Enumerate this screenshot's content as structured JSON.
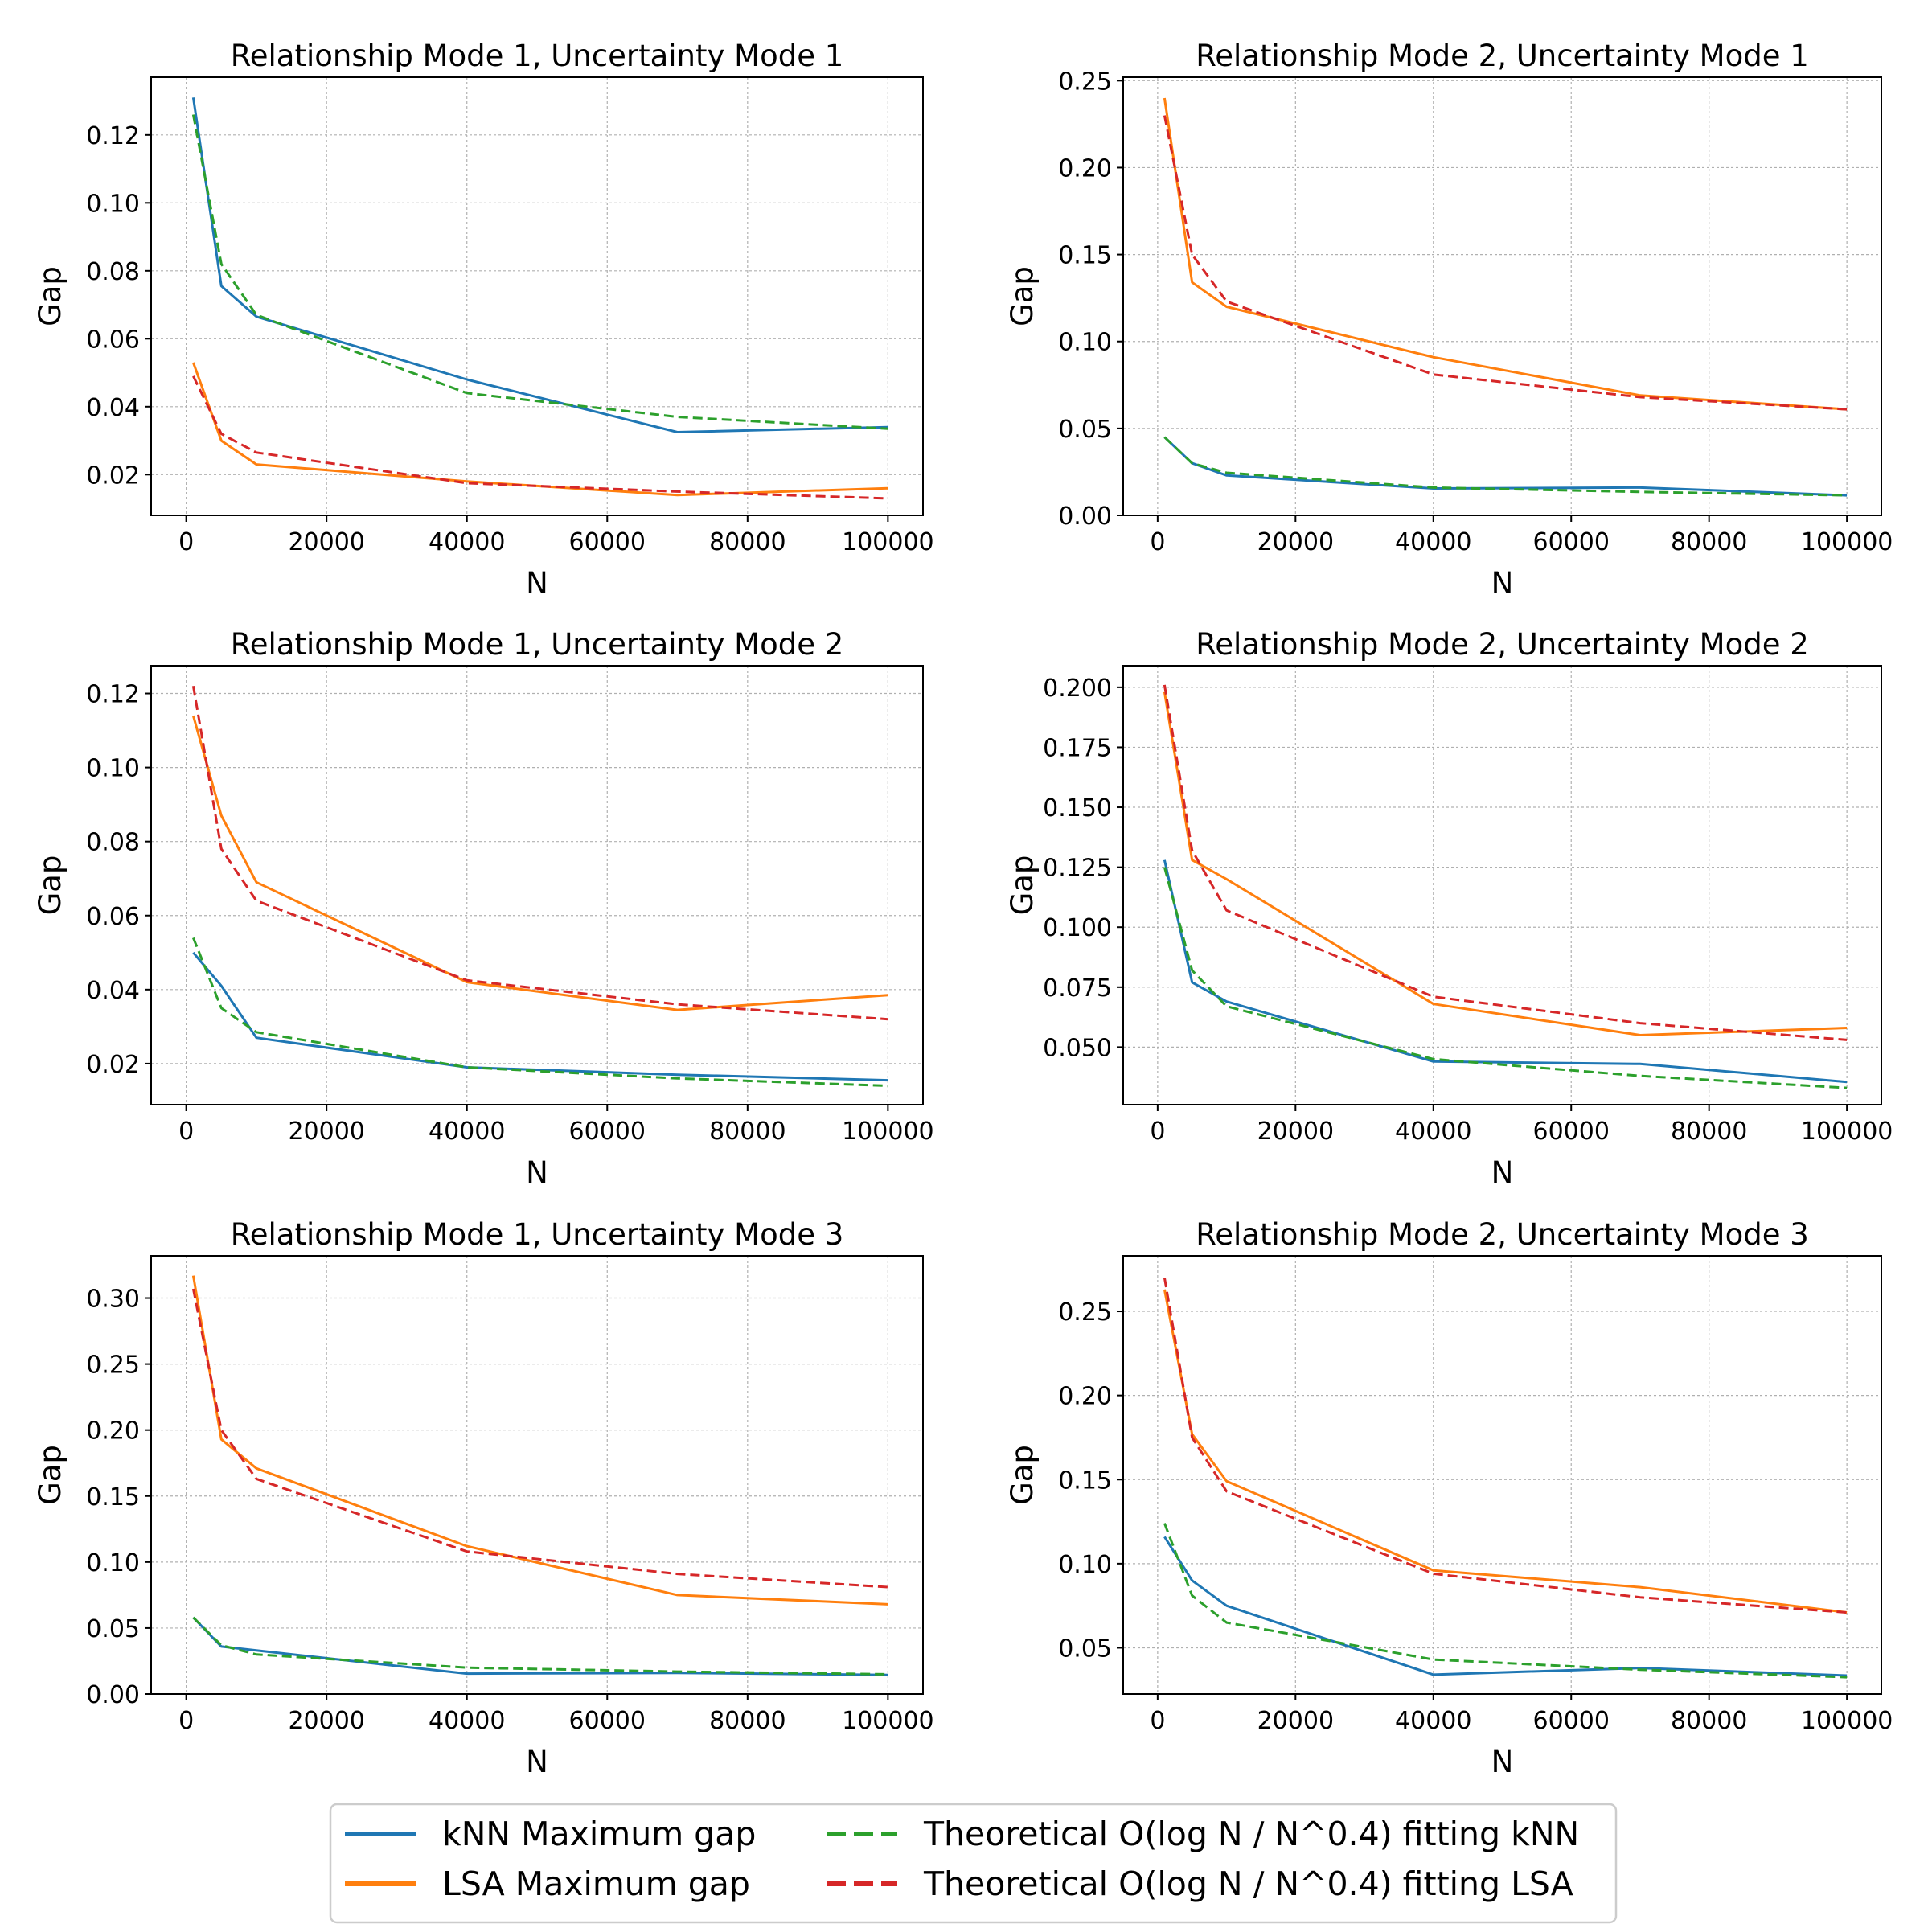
{
  "colors": {
    "knn": "#1f77b4",
    "lsa": "#ff7f0e",
    "fit_knn": "#2ca02c",
    "fit_lsa": "#d62728",
    "grid": "#b0b0b0"
  },
  "legend": {
    "knn_max": "kNN Maximum gap",
    "lsa_max": "LSA Maximum gap",
    "fit_knn": "Theoretical O(log N / N^0.4) fitting kNN",
    "fit_lsa": "Theoretical O(log N / N^0.4) fitting LSA"
  },
  "chart_data": [
    {
      "type": "line",
      "title": "Relationship Mode 1, Uncertainty Mode 1",
      "xlabel": "N",
      "ylabel": "Gap",
      "x": [
        1000,
        5000,
        10000,
        40000,
        70000,
        100000
      ],
      "xlim": [
        -5000,
        105000
      ],
      "ylim": [
        0.008,
        0.137
      ],
      "xticks": [
        0,
        20000,
        40000,
        60000,
        80000,
        100000
      ],
      "xtick_labels": [
        "0",
        "20000",
        "40000",
        "60000",
        "80000",
        "100000"
      ],
      "yticks": [
        0.02,
        0.04,
        0.06,
        0.08,
        0.1,
        0.12
      ],
      "ytick_labels": [
        "0.02",
        "0.04",
        "0.06",
        "0.08",
        "0.10",
        "0.12"
      ],
      "grid": true,
      "series": [
        {
          "name": "kNN Maximum gap",
          "color_key": "knn",
          "dashed": false,
          "values": [
            0.131,
            0.0755,
            0.0665,
            0.048,
            0.0325,
            0.034
          ]
        },
        {
          "name": "LSA Maximum gap",
          "color_key": "lsa",
          "dashed": false,
          "values": [
            0.053,
            0.03,
            0.023,
            0.018,
            0.014,
            0.016
          ]
        },
        {
          "name": "Theoretical O(log N / N^0.4) fitting kNN",
          "color_key": "fit_knn",
          "dashed": true,
          "values": [
            0.126,
            0.082,
            0.067,
            0.044,
            0.037,
            0.0335
          ]
        },
        {
          "name": "Theoretical O(log N / N^0.4) fitting LSA",
          "color_key": "fit_lsa",
          "dashed": true,
          "values": [
            0.049,
            0.032,
            0.0265,
            0.0175,
            0.015,
            0.013
          ]
        }
      ]
    },
    {
      "type": "line",
      "title": "Relationship Mode 2, Uncertainty Mode 1",
      "xlabel": "N",
      "ylabel": "Gap",
      "x": [
        1000,
        5000,
        10000,
        40000,
        70000,
        100000
      ],
      "xlim": [
        -5000,
        105000
      ],
      "ylim": [
        0.0,
        0.252
      ],
      "xticks": [
        0,
        20000,
        40000,
        60000,
        80000,
        100000
      ],
      "xtick_labels": [
        "0",
        "20000",
        "40000",
        "60000",
        "80000",
        "100000"
      ],
      "yticks": [
        0.0,
        0.05,
        0.1,
        0.15,
        0.2,
        0.25
      ],
      "ytick_labels": [
        "0.00",
        "0.05",
        "0.10",
        "0.15",
        "0.20",
        "0.25"
      ],
      "grid": true,
      "series": [
        {
          "name": "kNN Maximum gap",
          "color_key": "knn",
          "dashed": false,
          "values": [
            0.045,
            0.03,
            0.023,
            0.0155,
            0.016,
            0.0115
          ]
        },
        {
          "name": "LSA Maximum gap",
          "color_key": "lsa",
          "dashed": false,
          "values": [
            0.24,
            0.134,
            0.12,
            0.091,
            0.069,
            0.061
          ]
        },
        {
          "name": "Theoretical O(log N / N^0.4) fitting kNN",
          "color_key": "fit_knn",
          "dashed": true,
          "values": [
            0.045,
            0.03,
            0.0245,
            0.016,
            0.0135,
            0.0115
          ]
        },
        {
          "name": "Theoretical O(log N / N^0.4) fitting LSA",
          "color_key": "fit_lsa",
          "dashed": true,
          "values": [
            0.23,
            0.15,
            0.123,
            0.081,
            0.068,
            0.061
          ]
        }
      ]
    },
    {
      "type": "line",
      "title": "Relationship Mode 1, Uncertainty Mode 2",
      "xlabel": "N",
      "ylabel": "Gap",
      "x": [
        1000,
        5000,
        10000,
        40000,
        70000,
        100000
      ],
      "xlim": [
        -5000,
        105000
      ],
      "ylim": [
        0.0089,
        0.1275
      ],
      "xticks": [
        0,
        20000,
        40000,
        60000,
        80000,
        100000
      ],
      "xtick_labels": [
        "0",
        "20000",
        "40000",
        "60000",
        "80000",
        "100000"
      ],
      "yticks": [
        0.02,
        0.04,
        0.06,
        0.08,
        0.1,
        0.12
      ],
      "ytick_labels": [
        "0.02",
        "0.04",
        "0.06",
        "0.08",
        "0.10",
        "0.12"
      ],
      "grid": true,
      "series": [
        {
          "name": "kNN Maximum gap",
          "color_key": "knn",
          "dashed": false,
          "values": [
            0.05,
            0.041,
            0.027,
            0.019,
            0.017,
            0.0155
          ]
        },
        {
          "name": "LSA Maximum gap",
          "color_key": "lsa",
          "dashed": false,
          "values": [
            0.114,
            0.087,
            0.069,
            0.042,
            0.0345,
            0.0385
          ]
        },
        {
          "name": "Theoretical O(log N / N^0.4) fitting kNN",
          "color_key": "fit_knn",
          "dashed": true,
          "values": [
            0.054,
            0.035,
            0.0285,
            0.019,
            0.016,
            0.014
          ]
        },
        {
          "name": "Theoretical O(log N / N^0.4) fitting LSA",
          "color_key": "fit_lsa",
          "dashed": true,
          "values": [
            0.122,
            0.078,
            0.064,
            0.0425,
            0.036,
            0.032
          ]
        }
      ]
    },
    {
      "type": "line",
      "title": "Relationship Mode 2, Uncertainty Mode 2",
      "xlabel": "N",
      "ylabel": "Gap",
      "x": [
        1000,
        5000,
        10000,
        40000,
        70000,
        100000
      ],
      "xlim": [
        -5000,
        105000
      ],
      "ylim": [
        0.026,
        0.209
      ],
      "xticks": [
        0,
        20000,
        40000,
        60000,
        80000,
        100000
      ],
      "xtick_labels": [
        "0",
        "20000",
        "40000",
        "60000",
        "80000",
        "100000"
      ],
      "yticks": [
        0.05,
        0.075,
        0.1,
        0.125,
        0.15,
        0.175,
        0.2
      ],
      "ytick_labels": [
        "0.050",
        "0.075",
        "0.100",
        "0.125",
        "0.150",
        "0.175",
        "0.200"
      ],
      "grid": true,
      "series": [
        {
          "name": "kNN Maximum gap",
          "color_key": "knn",
          "dashed": false,
          "values": [
            0.128,
            0.077,
            0.069,
            0.044,
            0.043,
            0.0355
          ]
        },
        {
          "name": "LSA Maximum gap",
          "color_key": "lsa",
          "dashed": false,
          "values": [
            0.198,
            0.128,
            0.12,
            0.068,
            0.055,
            0.058
          ]
        },
        {
          "name": "Theoretical O(log N / N^0.4) fitting kNN",
          "color_key": "fit_knn",
          "dashed": true,
          "values": [
            0.125,
            0.082,
            0.067,
            0.045,
            0.038,
            0.033
          ]
        },
        {
          "name": "Theoretical O(log N / N^0.4) fitting LSA",
          "color_key": "fit_lsa",
          "dashed": true,
          "values": [
            0.201,
            0.132,
            0.107,
            0.071,
            0.06,
            0.053
          ]
        }
      ]
    },
    {
      "type": "line",
      "title": "Relationship Mode 1, Uncertainty Mode 3",
      "xlabel": "N",
      "ylabel": "Gap",
      "x": [
        1000,
        5000,
        10000,
        40000,
        70000,
        100000
      ],
      "xlim": [
        -5000,
        105000
      ],
      "ylim": [
        0.0,
        0.332
      ],
      "xticks": [
        0,
        20000,
        40000,
        60000,
        80000,
        100000
      ],
      "xtick_labels": [
        "0",
        "20000",
        "40000",
        "60000",
        "80000",
        "100000"
      ],
      "yticks": [
        0.0,
        0.05,
        0.1,
        0.15,
        0.2,
        0.25,
        0.3
      ],
      "ytick_labels": [
        "0.00",
        "0.05",
        "0.10",
        "0.15",
        "0.20",
        "0.25",
        "0.30"
      ],
      "grid": true,
      "series": [
        {
          "name": "kNN Maximum gap",
          "color_key": "knn",
          "dashed": false,
          "values": [
            0.058,
            0.036,
            0.033,
            0.0155,
            0.016,
            0.0145
          ]
        },
        {
          "name": "LSA Maximum gap",
          "color_key": "lsa",
          "dashed": false,
          "values": [
            0.317,
            0.193,
            0.171,
            0.112,
            0.075,
            0.068
          ]
        },
        {
          "name": "Theoretical O(log N / N^0.4) fitting kNN",
          "color_key": "fit_knn",
          "dashed": true,
          "values": [
            0.058,
            0.037,
            0.03,
            0.02,
            0.017,
            0.015
          ]
        },
        {
          "name": "Theoretical O(log N / N^0.4) fitting LSA",
          "color_key": "fit_lsa",
          "dashed": true,
          "values": [
            0.307,
            0.2,
            0.163,
            0.108,
            0.091,
            0.081
          ]
        }
      ]
    },
    {
      "type": "line",
      "title": "Relationship Mode 2, Uncertainty Mode 3",
      "xlabel": "N",
      "ylabel": "Gap",
      "x": [
        1000,
        5000,
        10000,
        40000,
        70000,
        100000
      ],
      "xlim": [
        -5000,
        105000
      ],
      "ylim": [
        0.0225,
        0.283
      ],
      "xticks": [
        0,
        20000,
        40000,
        60000,
        80000,
        100000
      ],
      "xtick_labels": [
        "0",
        "20000",
        "40000",
        "60000",
        "80000",
        "100000"
      ],
      "yticks": [
        0.05,
        0.1,
        0.15,
        0.2,
        0.25
      ],
      "ytick_labels": [
        "0.05",
        "0.10",
        "0.15",
        "0.20",
        "0.25"
      ],
      "grid": true,
      "series": [
        {
          "name": "kNN Maximum gap",
          "color_key": "knn",
          "dashed": false,
          "values": [
            0.116,
            0.09,
            0.075,
            0.034,
            0.038,
            0.0335
          ]
        },
        {
          "name": "LSA Maximum gap",
          "color_key": "lsa",
          "dashed": false,
          "values": [
            0.263,
            0.177,
            0.149,
            0.096,
            0.086,
            0.071
          ]
        },
        {
          "name": "Theoretical O(log N / N^0.4) fitting kNN",
          "color_key": "fit_knn",
          "dashed": true,
          "values": [
            0.124,
            0.081,
            0.065,
            0.043,
            0.037,
            0.0325
          ]
        },
        {
          "name": "Theoretical O(log N / N^0.4) fitting LSA",
          "color_key": "fit_lsa",
          "dashed": true,
          "values": [
            0.27,
            0.175,
            0.143,
            0.094,
            0.08,
            0.071
          ]
        }
      ]
    }
  ]
}
